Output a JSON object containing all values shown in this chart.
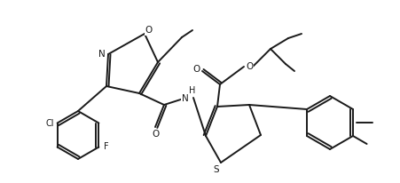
{
  "bg_color": "#ffffff",
  "line_color": "#1a1a1a",
  "line_width": 1.4,
  "figsize": [
    4.51,
    2.06
  ],
  "dpi": 100,
  "atoms": {
    "N": "N",
    "O": "O",
    "Cl": "Cl",
    "F": "F",
    "S": "S",
    "NH": "H",
    "methyl_iso": "",
    "methyl_tol": ""
  }
}
